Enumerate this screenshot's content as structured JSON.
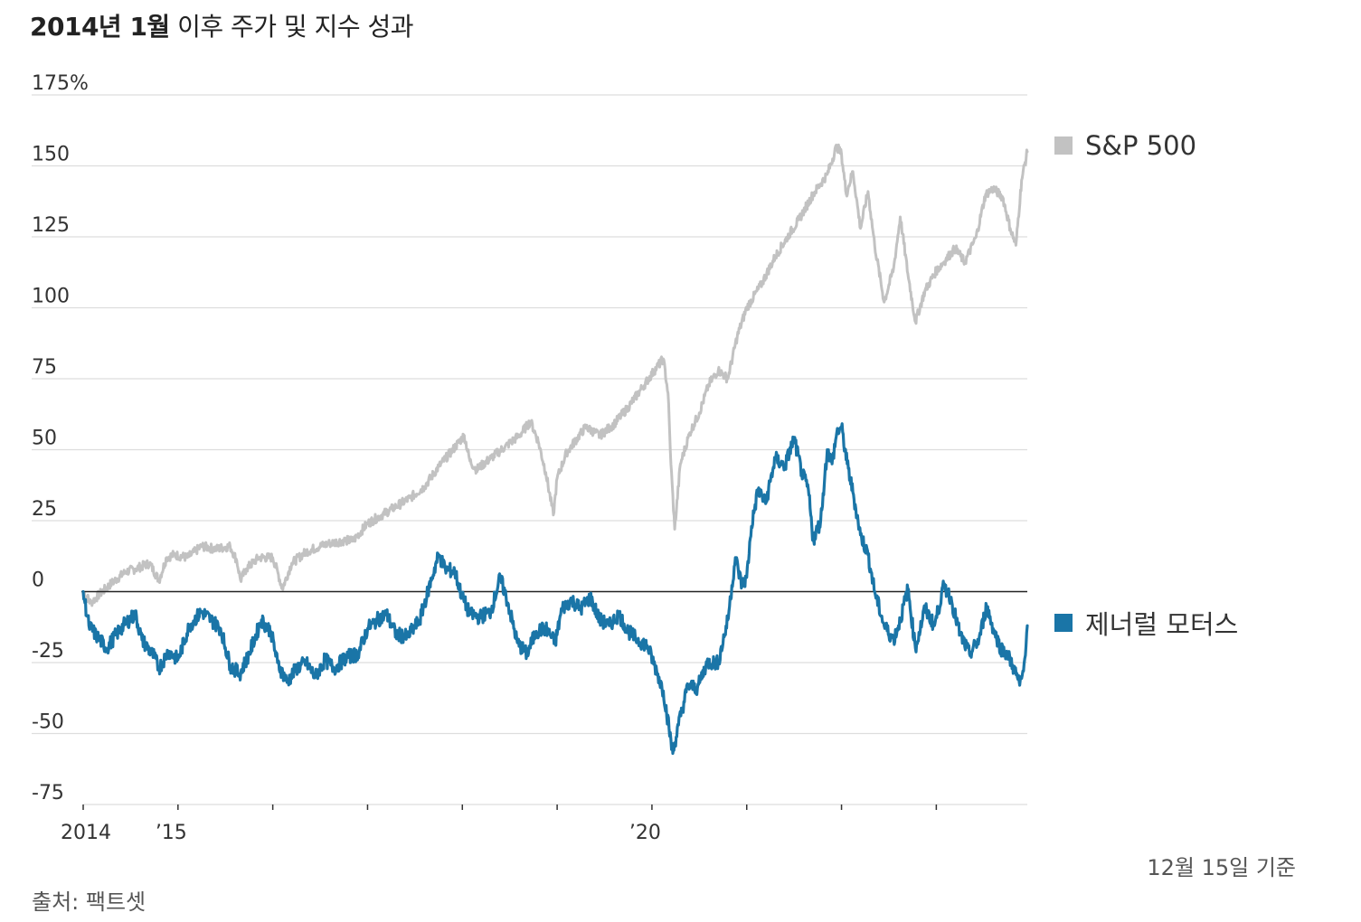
{
  "title": {
    "bold_part": "2014년 1월",
    "rest": "이후 주가 및 지수 성과"
  },
  "note": "12월 15일 기준",
  "source": "출처: 팩트셋",
  "colors": {
    "sp500": "#c2c2c2",
    "gm": "#1a75a7",
    "grid": "#dddddd",
    "zero": "#222222"
  },
  "chart_data": {
    "type": "line",
    "title": "2014년 1월 이후 주가 및 지수 성과",
    "ylabel": "%",
    "ylim": [
      -75,
      175
    ],
    "yticks": [
      {
        "value": 175,
        "label": "175%"
      },
      {
        "value": 150,
        "label": "150"
      },
      {
        "value": 125,
        "label": "125"
      },
      {
        "value": 100,
        "label": "100"
      },
      {
        "value": 75,
        "label": "75"
      },
      {
        "value": 50,
        "label": "50"
      },
      {
        "value": 25,
        "label": "25"
      },
      {
        "value": 0,
        "label": "0"
      },
      {
        "value": -25,
        "label": "-25"
      },
      {
        "value": -50,
        "label": "-50"
      },
      {
        "value": -75,
        "label": "-75"
      }
    ],
    "xlim": [
      2014.0,
      2023.96
    ],
    "xticks": [
      {
        "value": 2014.0,
        "label": "2014"
      },
      {
        "value": 2015.0,
        "label": "’15"
      },
      {
        "value": 2016.0,
        "label": ""
      },
      {
        "value": 2017.0,
        "label": ""
      },
      {
        "value": 2018.0,
        "label": ""
      },
      {
        "value": 2019.0,
        "label": ""
      },
      {
        "value": 2020.0,
        "label": "’20"
      },
      {
        "value": 2021.0,
        "label": ""
      },
      {
        "value": 2022.0,
        "label": ""
      },
      {
        "value": 2023.0,
        "label": ""
      }
    ],
    "legend_placement": "right",
    "series": [
      {
        "name": "S&P 500",
        "color": "#c2c2c2",
        "points": [
          [
            2014.0,
            0
          ],
          [
            2014.08,
            -4
          ],
          [
            2014.17,
            -1
          ],
          [
            2014.3,
            3
          ],
          [
            2014.45,
            7
          ],
          [
            2014.55,
            8
          ],
          [
            2014.7,
            10
          ],
          [
            2014.8,
            4
          ],
          [
            2014.88,
            12
          ],
          [
            2014.96,
            13
          ],
          [
            2015.1,
            12
          ],
          [
            2015.25,
            16
          ],
          [
            2015.4,
            15
          ],
          [
            2015.55,
            16
          ],
          [
            2015.62,
            11
          ],
          [
            2015.66,
            4
          ],
          [
            2015.72,
            8
          ],
          [
            2015.85,
            12
          ],
          [
            2016.0,
            12
          ],
          [
            2016.06,
            6
          ],
          [
            2016.1,
            1
          ],
          [
            2016.2,
            10
          ],
          [
            2016.35,
            14
          ],
          [
            2016.5,
            16
          ],
          [
            2016.6,
            17
          ],
          [
            2016.75,
            18
          ],
          [
            2016.85,
            18
          ],
          [
            2017.0,
            24
          ],
          [
            2017.15,
            27
          ],
          [
            2017.3,
            30
          ],
          [
            2017.45,
            33
          ],
          [
            2017.6,
            37
          ],
          [
            2017.75,
            44
          ],
          [
            2017.9,
            50
          ],
          [
            2018.02,
            55
          ],
          [
            2018.08,
            46
          ],
          [
            2018.15,
            43
          ],
          [
            2018.3,
            47
          ],
          [
            2018.45,
            51
          ],
          [
            2018.6,
            55
          ],
          [
            2018.72,
            60
          ],
          [
            2018.8,
            53
          ],
          [
            2018.88,
            42
          ],
          [
            2018.96,
            27
          ],
          [
            2019.0,
            40
          ],
          [
            2019.1,
            49
          ],
          [
            2019.3,
            58
          ],
          [
            2019.45,
            55
          ],
          [
            2019.6,
            59
          ],
          [
            2019.75,
            65
          ],
          [
            2019.9,
            72
          ],
          [
            2020.05,
            79
          ],
          [
            2020.12,
            82
          ],
          [
            2020.17,
            70
          ],
          [
            2020.2,
            45
          ],
          [
            2020.24,
            22
          ],
          [
            2020.3,
            45
          ],
          [
            2020.4,
            56
          ],
          [
            2020.5,
            63
          ],
          [
            2020.6,
            73
          ],
          [
            2020.7,
            78
          ],
          [
            2020.8,
            75
          ],
          [
            2020.9,
            90
          ],
          [
            2021.0,
            100
          ],
          [
            2021.15,
            108
          ],
          [
            2021.3,
            118
          ],
          [
            2021.45,
            126
          ],
          [
            2021.55,
            131
          ],
          [
            2021.7,
            140
          ],
          [
            2021.85,
            147
          ],
          [
            2021.95,
            157
          ],
          [
            2022.0,
            154
          ],
          [
            2022.05,
            140
          ],
          [
            2022.12,
            148
          ],
          [
            2022.2,
            128
          ],
          [
            2022.28,
            141
          ],
          [
            2022.35,
            122
          ],
          [
            2022.45,
            102
          ],
          [
            2022.55,
            114
          ],
          [
            2022.62,
            132
          ],
          [
            2022.7,
            112
          ],
          [
            2022.78,
            95
          ],
          [
            2022.88,
            106
          ],
          [
            2023.0,
            113
          ],
          [
            2023.1,
            117
          ],
          [
            2023.2,
            121
          ],
          [
            2023.3,
            116
          ],
          [
            2023.42,
            125
          ],
          [
            2023.52,
            140
          ],
          [
            2023.6,
            142
          ],
          [
            2023.7,
            139
          ],
          [
            2023.78,
            128
          ],
          [
            2023.84,
            122
          ],
          [
            2023.9,
            145
          ],
          [
            2023.96,
            155
          ]
        ]
      },
      {
        "name": "제너럴 모터스",
        "color": "#1a75a7",
        "points": [
          [
            2014.0,
            0
          ],
          [
            2014.06,
            -12
          ],
          [
            2014.15,
            -16
          ],
          [
            2014.25,
            -20
          ],
          [
            2014.35,
            -15
          ],
          [
            2014.45,
            -11
          ],
          [
            2014.55,
            -8
          ],
          [
            2014.62,
            -17
          ],
          [
            2014.75,
            -23
          ],
          [
            2014.8,
            -27
          ],
          [
            2014.9,
            -21
          ],
          [
            2015.0,
            -24
          ],
          [
            2015.12,
            -12
          ],
          [
            2015.25,
            -7
          ],
          [
            2015.35,
            -10
          ],
          [
            2015.45,
            -13
          ],
          [
            2015.55,
            -26
          ],
          [
            2015.65,
            -29
          ],
          [
            2015.75,
            -22
          ],
          [
            2015.88,
            -10
          ],
          [
            2015.98,
            -14
          ],
          [
            2016.05,
            -25
          ],
          [
            2016.15,
            -32
          ],
          [
            2016.25,
            -27
          ],
          [
            2016.35,
            -25
          ],
          [
            2016.45,
            -30
          ],
          [
            2016.55,
            -24
          ],
          [
            2016.65,
            -27
          ],
          [
            2016.78,
            -23
          ],
          [
            2016.9,
            -22
          ],
          [
            2017.0,
            -13
          ],
          [
            2017.1,
            -10
          ],
          [
            2017.2,
            -8
          ],
          [
            2017.3,
            -15
          ],
          [
            2017.42,
            -16
          ],
          [
            2017.55,
            -10
          ],
          [
            2017.68,
            5
          ],
          [
            2017.75,
            13
          ],
          [
            2017.82,
            8
          ],
          [
            2017.92,
            7
          ],
          [
            2018.0,
            -2
          ],
          [
            2018.08,
            -8
          ],
          [
            2018.18,
            -9
          ],
          [
            2018.3,
            -7
          ],
          [
            2018.4,
            5
          ],
          [
            2018.48,
            -4
          ],
          [
            2018.58,
            -18
          ],
          [
            2018.68,
            -22
          ],
          [
            2018.78,
            -14
          ],
          [
            2018.88,
            -13
          ],
          [
            2018.98,
            -18
          ],
          [
            2019.05,
            -6
          ],
          [
            2019.15,
            -3
          ],
          [
            2019.25,
            -6
          ],
          [
            2019.35,
            -2
          ],
          [
            2019.45,
            -10
          ],
          [
            2019.55,
            -12
          ],
          [
            2019.65,
            -8
          ],
          [
            2019.75,
            -14
          ],
          [
            2019.85,
            -17
          ],
          [
            2019.95,
            -19
          ],
          [
            2020.05,
            -28
          ],
          [
            2020.12,
            -35
          ],
          [
            2020.18,
            -48
          ],
          [
            2020.22,
            -57
          ],
          [
            2020.28,
            -47
          ],
          [
            2020.38,
            -33
          ],
          [
            2020.48,
            -34
          ],
          [
            2020.58,
            -25
          ],
          [
            2020.7,
            -25
          ],
          [
            2020.8,
            -10
          ],
          [
            2020.88,
            12
          ],
          [
            2020.95,
            2
          ],
          [
            2021.0,
            5
          ],
          [
            2021.05,
            23
          ],
          [
            2021.12,
            36
          ],
          [
            2021.2,
            31
          ],
          [
            2021.3,
            47
          ],
          [
            2021.4,
            44
          ],
          [
            2021.5,
            54
          ],
          [
            2021.58,
            42
          ],
          [
            2021.65,
            36
          ],
          [
            2021.7,
            18
          ],
          [
            2021.78,
            25
          ],
          [
            2021.85,
            50
          ],
          [
            2021.9,
            45
          ],
          [
            2021.95,
            56
          ],
          [
            2022.0,
            58
          ],
          [
            2022.06,
            45
          ],
          [
            2022.12,
            35
          ],
          [
            2022.2,
            20
          ],
          [
            2022.28,
            13
          ],
          [
            2022.35,
            0
          ],
          [
            2022.45,
            -12
          ],
          [
            2022.55,
            -17
          ],
          [
            2022.62,
            -10
          ],
          [
            2022.7,
            1
          ],
          [
            2022.78,
            -20
          ],
          [
            2022.88,
            -6
          ],
          [
            2022.98,
            -12
          ],
          [
            2023.08,
            2
          ],
          [
            2023.15,
            -2
          ],
          [
            2023.25,
            -15
          ],
          [
            2023.35,
            -22
          ],
          [
            2023.45,
            -17
          ],
          [
            2023.53,
            -5
          ],
          [
            2023.6,
            -13
          ],
          [
            2023.68,
            -20
          ],
          [
            2023.75,
            -22
          ],
          [
            2023.83,
            -28
          ],
          [
            2023.88,
            -33
          ],
          [
            2023.92,
            -28
          ],
          [
            2023.96,
            -12
          ]
        ]
      }
    ]
  }
}
